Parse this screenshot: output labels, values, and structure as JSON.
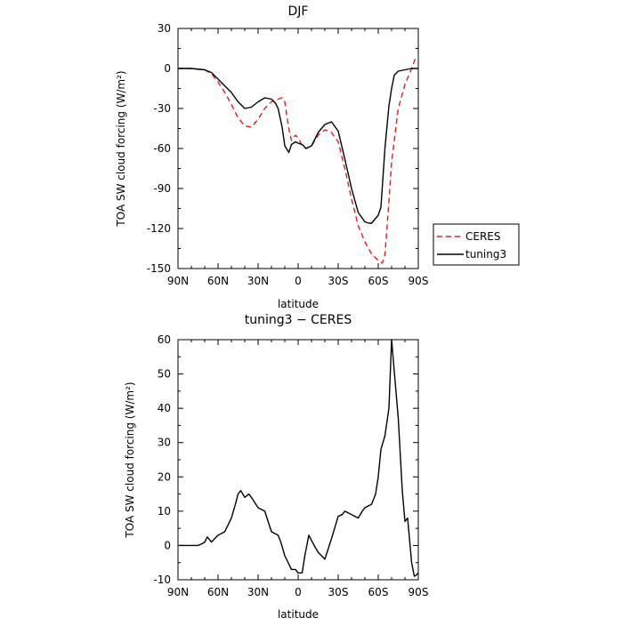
{
  "chart_data": [
    {
      "type": "line",
      "title": "DJF",
      "xlabel": "latitude",
      "ylabel": "TOA SW cloud forcing (W/m²)",
      "x_axis": {
        "direction": "north-to-south",
        "xlim": [
          90,
          -90
        ]
      },
      "xticks": [
        {
          "value": 90,
          "label": "90N"
        },
        {
          "value": 60,
          "label": "60N"
        },
        {
          "value": 30,
          "label": "30N"
        },
        {
          "value": 0,
          "label": "0"
        },
        {
          "value": -30,
          "label": "30S"
        },
        {
          "value": -60,
          "label": "60S"
        },
        {
          "value": -90,
          "label": "90S"
        }
      ],
      "ylim": [
        -150,
        30
      ],
      "yticks": [
        30,
        0,
        -30,
        -60,
        -90,
        -120,
        -150
      ],
      "grid": false,
      "legend": {
        "placement": "outside-right"
      },
      "series": [
        {
          "name": "CERES",
          "color": "#e41a1c",
          "style": "dashed",
          "x": [
            90,
            80,
            70,
            65,
            60,
            55,
            50,
            45,
            40,
            35,
            30,
            25,
            20,
            15,
            12,
            10,
            7,
            5,
            2,
            0,
            -3,
            -6,
            -10,
            -15,
            -20,
            -25,
            -30,
            -35,
            -40,
            -45,
            -50,
            -55,
            -60,
            -63,
            -65,
            -68,
            -70,
            -75,
            -80,
            -85,
            -88,
            -90
          ],
          "values": [
            0,
            0,
            -1,
            -4,
            -10,
            -18,
            -27,
            -37,
            -43,
            -44,
            -38,
            -30,
            -25,
            -23,
            -22,
            -25,
            -45,
            -54,
            -50,
            -52,
            -58,
            -60,
            -58,
            -50,
            -46,
            -48,
            -55,
            -75,
            -98,
            -118,
            -130,
            -139,
            -144,
            -146,
            -140,
            -100,
            -70,
            -30,
            -12,
            0,
            8,
            8
          ]
        },
        {
          "name": "tuning3",
          "color": "#000000",
          "style": "solid",
          "x": [
            90,
            80,
            70,
            65,
            60,
            55,
            50,
            45,
            40,
            35,
            30,
            25,
            20,
            17,
            15,
            12,
            10,
            7,
            5,
            2,
            0,
            -3,
            -6,
            -10,
            -15,
            -20,
            -25,
            -30,
            -35,
            -40,
            -45,
            -50,
            -53,
            -55,
            -60,
            -62,
            -65,
            -68,
            -70,
            -72,
            -75,
            -80,
            -85,
            -88,
            -90
          ],
          "values": [
            0,
            0,
            -1,
            -3,
            -8,
            -13,
            -18,
            -25,
            -30,
            -29,
            -25,
            -22,
            -23,
            -26,
            -30,
            -44,
            -58,
            -63,
            -57,
            -55,
            -56,
            -57,
            -60,
            -58,
            -48,
            -42,
            -40,
            -47,
            -68,
            -90,
            -108,
            -115,
            -116,
            -116,
            -110,
            -104,
            -60,
            -28,
            -15,
            -5,
            -2,
            -1,
            0,
            0,
            0
          ]
        }
      ]
    },
    {
      "type": "line",
      "title": "tuning3 − CERES",
      "xlabel": "latitude",
      "ylabel": "TOA SW cloud forcing (W/m²)",
      "x_axis": {
        "direction": "north-to-south",
        "xlim": [
          90,
          -90
        ]
      },
      "xticks": [
        {
          "value": 90,
          "label": "90N"
        },
        {
          "value": 60,
          "label": "60N"
        },
        {
          "value": 30,
          "label": "30N"
        },
        {
          "value": 0,
          "label": "0"
        },
        {
          "value": -30,
          "label": "30S"
        },
        {
          "value": -60,
          "label": "60S"
        },
        {
          "value": -90,
          "label": "90S"
        }
      ],
      "ylim": [
        -10,
        60
      ],
      "yticks": [
        60,
        50,
        40,
        30,
        20,
        10,
        0,
        -10
      ],
      "grid": false,
      "series": [
        {
          "color": "#000000",
          "style": "solid",
          "x": [
            90,
            80,
            75,
            72,
            70,
            68,
            65,
            60,
            55,
            50,
            47,
            45,
            43,
            40,
            37,
            35,
            30,
            25,
            20,
            15,
            13,
            10,
            5,
            2,
            0,
            -3,
            -5,
            -8,
            -12,
            -15,
            -20,
            -25,
            -30,
            -33,
            -35,
            -40,
            -45,
            -48,
            -50,
            -55,
            -58,
            -60,
            -62,
            -65,
            -68,
            -70,
            -75,
            -78,
            -80,
            -82,
            -85,
            -87,
            -89,
            -90
          ],
          "values": [
            0,
            0,
            0,
            0.5,
            1,
            2.5,
            1,
            3,
            4,
            8,
            12,
            15,
            16,
            14,
            15,
            14,
            11,
            10,
            4,
            3,
            1,
            -3,
            -7,
            -7,
            -8,
            -8,
            -3,
            3,
            0,
            -2,
            -4,
            2,
            8.5,
            9,
            10,
            9,
            8,
            10,
            11,
            12,
            15,
            20,
            28,
            32,
            40,
            60,
            37,
            16,
            7,
            8,
            -5,
            -9,
            -8.5,
            -8
          ]
        }
      ]
    }
  ]
}
